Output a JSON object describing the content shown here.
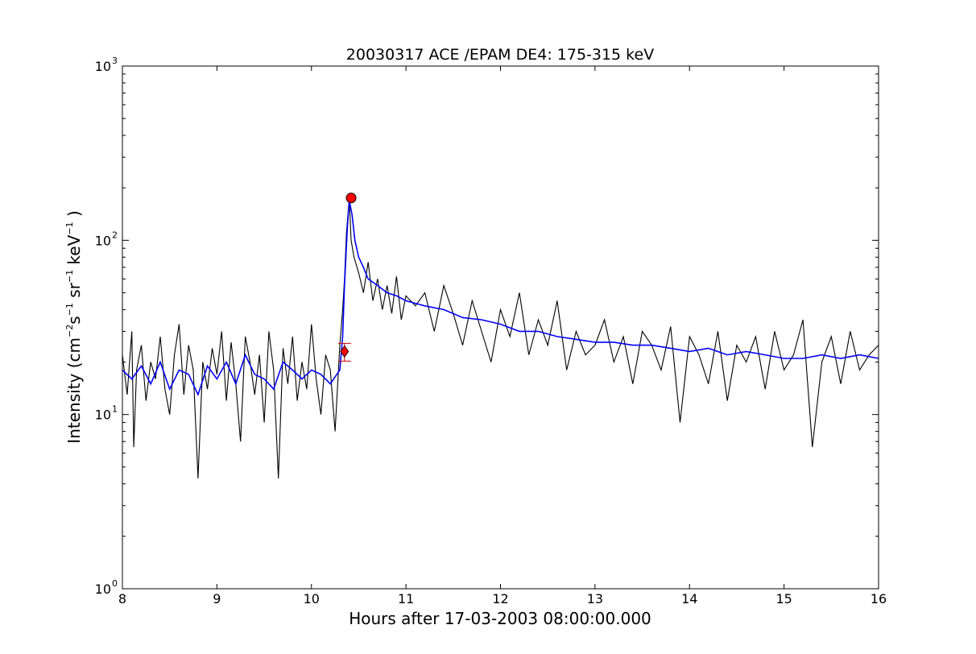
{
  "chart_data": {
    "type": "line",
    "title": "20030317 ACE /EPAM DE4: 175-315 keV",
    "xlabel": "Hours after 17-03-2003 08:00:00.000",
    "ylabel": {
      "prefix": "Intensity (cm",
      "exp1": "−2",
      "s": "s",
      "exp2": "−1",
      "sr": " sr",
      "exp3": "−1",
      "kev": " keV",
      "exp4": "−1",
      "suffix": " )"
    },
    "x_range": [
      8,
      16
    ],
    "y_range": [
      1,
      1000
    ],
    "y_scale": "log",
    "grid": false,
    "x_ticks": [
      "8",
      "9",
      "10",
      "11",
      "12",
      "13",
      "14",
      "15",
      "16"
    ],
    "y_ticks": [
      {
        "base": "10",
        "exp": "0",
        "value": 1
      },
      {
        "base": "10",
        "exp": "1",
        "value": 10
      },
      {
        "base": "10",
        "exp": "2",
        "value": 100
      },
      {
        "base": "10",
        "exp": "3",
        "value": 1000
      }
    ],
    "colors": {
      "raw": "#000000",
      "smoothed": "#0000ff",
      "marker": "#ff0000"
    },
    "series": [
      {
        "style": "raw",
        "color": "#000000",
        "x": [
          8.0,
          8.05,
          8.1,
          8.12,
          8.15,
          8.2,
          8.25,
          8.3,
          8.35,
          8.4,
          8.45,
          8.5,
          8.55,
          8.6,
          8.65,
          8.7,
          8.75,
          8.8,
          8.85,
          8.9,
          8.95,
          9.0,
          9.05,
          9.1,
          9.15,
          9.2,
          9.25,
          9.3,
          9.35,
          9.4,
          9.45,
          9.5,
          9.55,
          9.6,
          9.65,
          9.7,
          9.75,
          9.8,
          9.85,
          9.9,
          9.95,
          10.0,
          10.05,
          10.1,
          10.15,
          10.2,
          10.25,
          10.3,
          10.33,
          10.35,
          10.37,
          10.4,
          10.42,
          10.45,
          10.5,
          10.55,
          10.6,
          10.65,
          10.7,
          10.75,
          10.8,
          10.85,
          10.9,
          10.95,
          11.0,
          11.1,
          11.2,
          11.3,
          11.4,
          11.5,
          11.6,
          11.7,
          11.8,
          11.9,
          12.0,
          12.1,
          12.2,
          12.3,
          12.4,
          12.5,
          12.6,
          12.7,
          12.8,
          12.9,
          13.0,
          13.1,
          13.2,
          13.3,
          13.4,
          13.5,
          13.6,
          13.7,
          13.8,
          13.9,
          14.0,
          14.1,
          14.2,
          14.3,
          14.4,
          14.5,
          14.6,
          14.7,
          14.8,
          14.9,
          15.0,
          15.1,
          15.2,
          15.3,
          15.4,
          15.5,
          15.6,
          15.7,
          15.8,
          15.9,
          16.0
        ],
        "y": [
          22,
          13,
          30,
          6.5,
          18,
          25,
          12,
          20,
          16,
          28,
          14,
          10,
          22,
          33,
          13,
          25,
          18,
          4.3,
          20,
          14,
          24,
          17,
          30,
          12,
          26,
          15,
          7,
          28,
          20,
          13,
          22,
          9,
          30,
          18,
          4.3,
          24,
          15,
          28,
          12,
          20,
          14,
          33,
          16,
          10,
          22,
          18,
          8,
          25,
          40,
          60,
          110,
          175,
          100,
          80,
          65,
          50,
          75,
          45,
          60,
          40,
          55,
          38,
          62,
          35,
          48,
          42,
          50,
          30,
          55,
          38,
          25,
          45,
          30,
          20,
          40,
          28,
          50,
          22,
          35,
          25,
          45,
          18,
          30,
          22,
          25,
          35,
          20,
          28,
          15,
          30,
          25,
          18,
          32,
          9,
          28,
          22,
          15,
          30,
          12,
          25,
          20,
          28,
          14,
          30,
          18,
          22,
          35,
          6.5,
          20,
          28,
          15,
          30,
          18,
          22,
          25
        ]
      },
      {
        "style": "smoothed",
        "color": "#0000ff",
        "x": [
          8.0,
          8.1,
          8.2,
          8.3,
          8.4,
          8.5,
          8.6,
          8.7,
          8.8,
          8.9,
          9.0,
          9.1,
          9.2,
          9.3,
          9.4,
          9.5,
          9.6,
          9.7,
          9.8,
          9.9,
          10.0,
          10.1,
          10.2,
          10.3,
          10.33,
          10.35,
          10.38,
          10.4,
          10.43,
          10.46,
          10.5,
          10.55,
          10.6,
          10.7,
          10.8,
          10.9,
          11.0,
          11.2,
          11.4,
          11.6,
          11.8,
          12.0,
          12.2,
          12.4,
          12.6,
          12.8,
          13.0,
          13.2,
          13.4,
          13.6,
          13.8,
          14.0,
          14.2,
          14.4,
          14.6,
          14.8,
          15.0,
          15.2,
          15.4,
          15.6,
          15.8,
          16.0
        ],
        "y": [
          18,
          16,
          19,
          15,
          20,
          14,
          18,
          17,
          13,
          19,
          16,
          20,
          15,
          22,
          17,
          16,
          14,
          20,
          18,
          16,
          18,
          17,
          15,
          18,
          28,
          55,
          120,
          170,
          140,
          100,
          80,
          70,
          60,
          55,
          50,
          48,
          45,
          42,
          40,
          36,
          35,
          33,
          30,
          30,
          28,
          27,
          26,
          26,
          25,
          25,
          24,
          23,
          24,
          22,
          23,
          22,
          21,
          21,
          22,
          21,
          22,
          21
        ]
      }
    ],
    "markers": [
      {
        "shape": "circle",
        "x": 10.42,
        "y": 175,
        "color": "#ff0000"
      },
      {
        "shape": "diamond",
        "x": 10.35,
        "y": 23,
        "color": "#ff0000"
      }
    ]
  }
}
